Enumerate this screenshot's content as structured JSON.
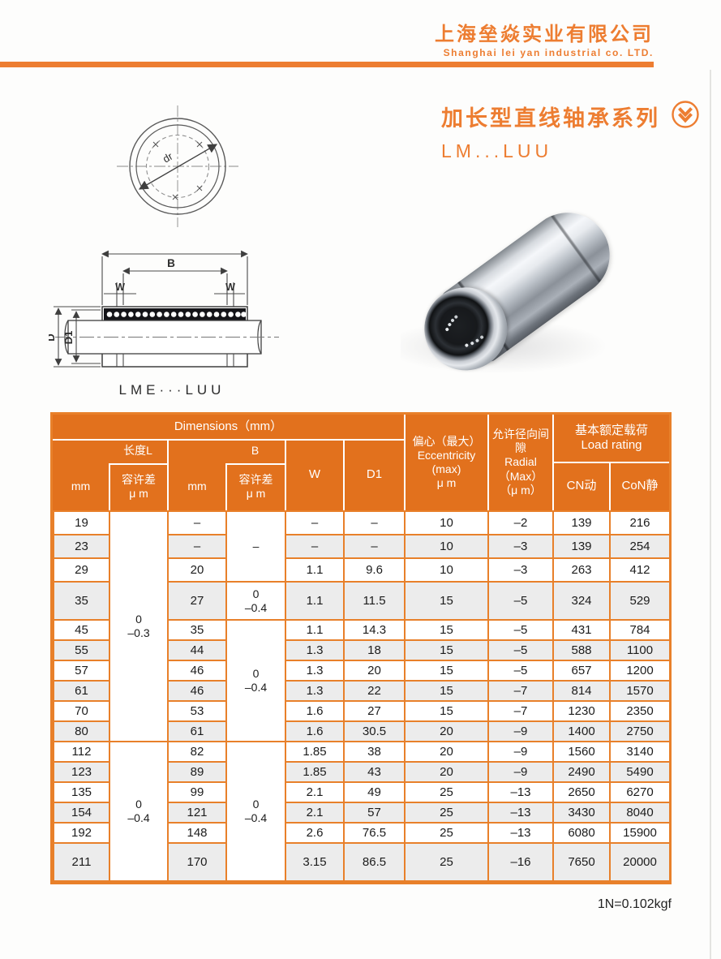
{
  "brand": {
    "company_cn": "上海垒焱实业有限公司",
    "company_en": "Shanghai lei yan industrial co. LTD."
  },
  "series": {
    "title_cn": "加长型直线轴承系列",
    "model": "LM...LUU"
  },
  "icons": {
    "series_badge": "double-chevron-down-circle-icon"
  },
  "drawings": {
    "front_view": {
      "diameter_label": "dr"
    },
    "section_view": {
      "label": "LME···LUU",
      "dim_b": "B",
      "dim_w_left": "W",
      "dim_w_right": "W",
      "dim_d": "D",
      "dim_d1": "D1"
    }
  },
  "table": {
    "header": {
      "dimensions": "Dimensions（mm）",
      "length_l": "长度L",
      "b_group": "B",
      "mm_l": "mm",
      "mm_b": "mm",
      "tol_l": [
        "容许差",
        "μ m"
      ],
      "tol_b": [
        "容许差",
        "μ m"
      ],
      "w": "W",
      "d1": "D1",
      "eccentricity": [
        "偏心（最大）",
        "Eccentricity",
        "(max)",
        "μ m"
      ],
      "radial": [
        "允许径向间隙",
        "Radial",
        "（Max）",
        "（μ m）"
      ],
      "load_rating": [
        "基本额定载荷",
        "Load rating"
      ],
      "cn_dynamic": "CN动",
      "con_static": "CoN静"
    },
    "l_tolerance_groups": [
      {
        "lines": [
          "0",
          "–0.3"
        ],
        "row_start": 0,
        "row_count": 10
      },
      {
        "lines": [
          "0",
          "–0.4"
        ],
        "row_start": 10,
        "row_count": 6
      }
    ],
    "b_tolerance_groups": [
      {
        "lines": [
          "–"
        ],
        "row_start": 0,
        "row_count": 3
      },
      {
        "lines": [
          "0",
          "–0.4"
        ],
        "row_start": 3,
        "row_count": 1
      },
      {
        "lines": [
          "0",
          "–0.4"
        ],
        "row_start": 4,
        "row_count": 6
      },
      {
        "lines": [
          "0",
          "–0.4"
        ],
        "row_start": 10,
        "row_count": 6
      }
    ],
    "rows": [
      {
        "l_mm": "19",
        "b_mm": "–",
        "w": "–",
        "d1": "–",
        "ecc": "10",
        "radial": "–2",
        "cn": "139",
        "con": "216"
      },
      {
        "l_mm": "23",
        "b_mm": "–",
        "w": "–",
        "d1": "–",
        "ecc": "10",
        "radial": "–3",
        "cn": "139",
        "con": "254"
      },
      {
        "l_mm": "29",
        "b_mm": "20",
        "w": "1.1",
        "d1": "9.6",
        "ecc": "10",
        "radial": "–3",
        "cn": "263",
        "con": "412"
      },
      {
        "l_mm": "35",
        "b_mm": "27",
        "w": "1.1",
        "d1": "11.5",
        "ecc": "15",
        "radial": "–5",
        "cn": "324",
        "con": "529"
      },
      {
        "l_mm": "45",
        "b_mm": "35",
        "w": "1.1",
        "d1": "14.3",
        "ecc": "15",
        "radial": "–5",
        "cn": "431",
        "con": "784"
      },
      {
        "l_mm": "55",
        "b_mm": "44",
        "w": "1.3",
        "d1": "18",
        "ecc": "15",
        "radial": "–5",
        "cn": "588",
        "con": "1100"
      },
      {
        "l_mm": "57",
        "b_mm": "46",
        "w": "1.3",
        "d1": "20",
        "ecc": "15",
        "radial": "–5",
        "cn": "657",
        "con": "1200"
      },
      {
        "l_mm": "61",
        "b_mm": "46",
        "w": "1.3",
        "d1": "22",
        "ecc": "15",
        "radial": "–7",
        "cn": "814",
        "con": "1570"
      },
      {
        "l_mm": "70",
        "b_mm": "53",
        "w": "1.6",
        "d1": "27",
        "ecc": "15",
        "radial": "–7",
        "cn": "1230",
        "con": "2350"
      },
      {
        "l_mm": "80",
        "b_mm": "61",
        "w": "1.6",
        "d1": "30.5",
        "ecc": "20",
        "radial": "–9",
        "cn": "1400",
        "con": "2750"
      },
      {
        "l_mm": "112",
        "b_mm": "82",
        "w": "1.85",
        "d1": "38",
        "ecc": "20",
        "radial": "–9",
        "cn": "1560",
        "con": "3140"
      },
      {
        "l_mm": "123",
        "b_mm": "89",
        "w": "1.85",
        "d1": "43",
        "ecc": "20",
        "radial": "–9",
        "cn": "2490",
        "con": "5490"
      },
      {
        "l_mm": "135",
        "b_mm": "99",
        "w": "2.1",
        "d1": "49",
        "ecc": "25",
        "radial": "–13",
        "cn": "2650",
        "con": "6270"
      },
      {
        "l_mm": "154",
        "b_mm": "121",
        "w": "2.1",
        "d1": "57",
        "ecc": "25",
        "radial": "–13",
        "cn": "3430",
        "con": "8040"
      },
      {
        "l_mm": "192",
        "b_mm": "148",
        "w": "2.6",
        "d1": "76.5",
        "ecc": "25",
        "radial": "–13",
        "cn": "6080",
        "con": "15900"
      },
      {
        "l_mm": "211",
        "b_mm": "170",
        "w": "3.15",
        "d1": "86.5",
        "ecc": "25",
        "radial": "–16",
        "cn": "7650",
        "con": "20000"
      }
    ]
  },
  "footnote": "1N=0.102kgf",
  "colors": {
    "accent": "#ED7D31",
    "table_header": "#E2711D",
    "table_border": "#E8802A",
    "row_alt": "#ececec"
  }
}
